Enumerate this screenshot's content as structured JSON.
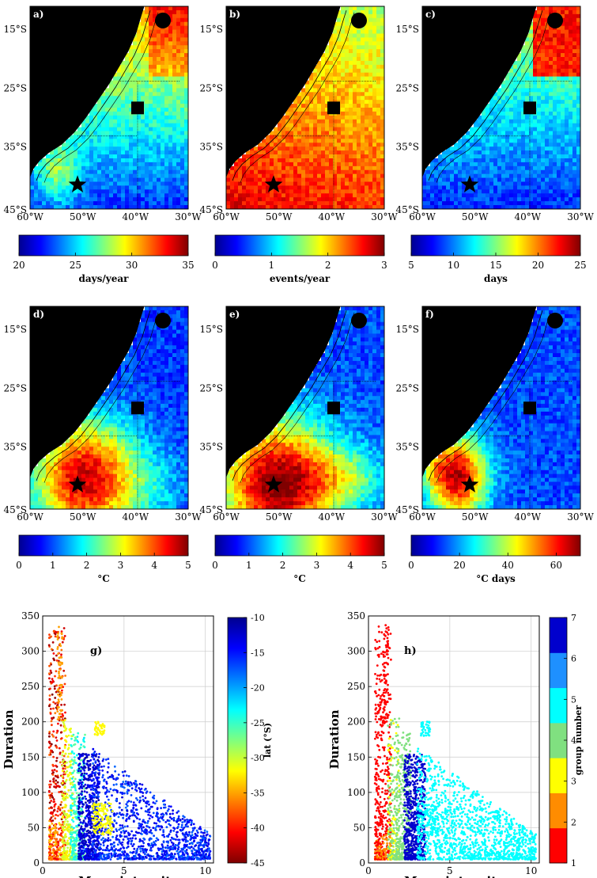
{
  "colors": {
    "land": "#000000",
    "jet": [
      "#00008f",
      "#0000ff",
      "#007fff",
      "#00ffff",
      "#7fff7f",
      "#ffff00",
      "#ff7f00",
      "#ff0000",
      "#7f0000"
    ],
    "groups": [
      "#ff0000",
      "#ff8c00",
      "#ffff00",
      "#80e080",
      "#00ffff",
      "#1e90ff",
      "#0000cd"
    ]
  },
  "map_axes": {
    "lat_ticks": [
      "15°S",
      "25°S",
      "35°S",
      "45°S"
    ],
    "lon_ticks": [
      "60°W",
      "50°W",
      "40°W",
      "30°W"
    ]
  },
  "chart_data": [
    {
      "type": "heatmap",
      "panel": "a)",
      "colorbar": {
        "label": "days/year",
        "ticks": [
          "20",
          "25",
          "30",
          "35"
        ],
        "range": [
          20,
          35
        ]
      }
    },
    {
      "type": "heatmap",
      "panel": "b)",
      "colorbar": {
        "label": "events/year",
        "ticks": [
          "0",
          "1",
          "2",
          "3"
        ],
        "range": [
          0,
          3
        ]
      }
    },
    {
      "type": "heatmap",
      "panel": "c)",
      "colorbar": {
        "label": "days",
        "ticks": [
          "5",
          "10",
          "15",
          "20",
          "25"
        ],
        "range": [
          5,
          25
        ]
      }
    },
    {
      "type": "heatmap",
      "panel": "d)",
      "colorbar": {
        "label": "°C",
        "ticks": [
          "0",
          "1",
          "2",
          "3",
          "4",
          "5"
        ],
        "range": [
          0,
          5
        ]
      }
    },
    {
      "type": "heatmap",
      "panel": "e)",
      "colorbar": {
        "label": "°C",
        "ticks": [
          "0",
          "1",
          "2",
          "3",
          "4",
          "5"
        ],
        "range": [
          0,
          5
        ]
      }
    },
    {
      "type": "heatmap",
      "panel": "f)",
      "colorbar": {
        "label": "°C days",
        "ticks": [
          "0",
          "20",
          "40",
          "60"
        ],
        "range": [
          0,
          70
        ]
      }
    },
    {
      "type": "scatter",
      "panel": "g)",
      "xlabel": "Mean intensity",
      "ylabel": "Duration",
      "xlim": [
        0,
        10.5
      ],
      "ylim": [
        0,
        350
      ],
      "xticks": [
        "0",
        "5",
        "10"
      ],
      "yticks": [
        "0",
        "50",
        "100",
        "150",
        "200",
        "250",
        "300",
        "350"
      ],
      "colorbar": {
        "label": "lat (°S)",
        "ticks": [
          "-10",
          "-15",
          "-20",
          "-25",
          "-30",
          "-35",
          "-40",
          "-45"
        ],
        "range": [
          -45,
          -10
        ]
      }
    },
    {
      "type": "scatter",
      "panel": "h)",
      "xlabel": "Mean intensity",
      "ylabel": "Duration",
      "xlim": [
        0,
        10.5
      ],
      "ylim": [
        0,
        350
      ],
      "xticks": [
        "0",
        "5",
        "10"
      ],
      "yticks": [
        "0",
        "50",
        "100",
        "150",
        "200",
        "250",
        "300",
        "350"
      ],
      "colorbar": {
        "label": "group number",
        "ticks": [
          "1",
          "2",
          "3",
          "4",
          "5",
          "6",
          "7"
        ],
        "range": [
          1,
          7
        ]
      }
    }
  ]
}
